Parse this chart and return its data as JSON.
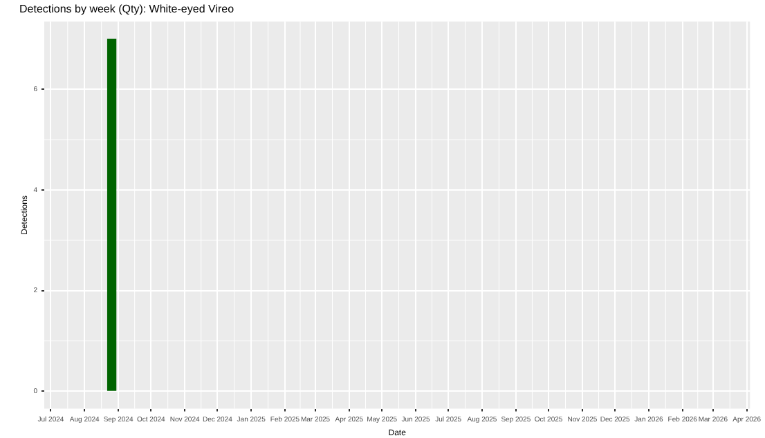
{
  "chart_data": {
    "type": "bar",
    "title": "Detections by week (Qty): White-eyed Vireo",
    "xlabel": "Date",
    "ylabel": "Detections",
    "x": [
      "2024-08-26"
    ],
    "values": [
      7
    ],
    "color": "#006400",
    "xlim": [
      "2024-06-25",
      "2026-04-04"
    ],
    "xticks": [
      {
        "value": "2024-07-01",
        "label": "Jul 2024"
      },
      {
        "value": "2024-08-01",
        "label": "Aug 2024"
      },
      {
        "value": "2024-09-01",
        "label": "Sep 2024"
      },
      {
        "value": "2024-10-01",
        "label": "Oct 2024"
      },
      {
        "value": "2024-11-01",
        "label": "Nov 2024"
      },
      {
        "value": "2024-12-01",
        "label": "Dec 2024"
      },
      {
        "value": "2025-01-01",
        "label": "Jan 2025"
      },
      {
        "value": "2025-02-01",
        "label": "Feb 2025"
      },
      {
        "value": "2025-03-01",
        "label": "Mar 2025"
      },
      {
        "value": "2025-04-01",
        "label": "Apr 2025"
      },
      {
        "value": "2025-05-01",
        "label": "May 2025"
      },
      {
        "value": "2025-06-01",
        "label": "Jun 2025"
      },
      {
        "value": "2025-07-01",
        "label": "Jul 2025"
      },
      {
        "value": "2025-08-01",
        "label": "Aug 2025"
      },
      {
        "value": "2025-09-01",
        "label": "Sep 2025"
      },
      {
        "value": "2025-10-01",
        "label": "Oct 2025"
      },
      {
        "value": "2025-11-01",
        "label": "Nov 2025"
      },
      {
        "value": "2025-12-01",
        "label": "Dec 2025"
      },
      {
        "value": "2026-01-01",
        "label": "Jan 2026"
      },
      {
        "value": "2026-02-01",
        "label": "Feb 2026"
      },
      {
        "value": "2026-03-01",
        "label": "Mar 2026"
      },
      {
        "value": "2026-04-01",
        "label": "Apr 2026"
      }
    ],
    "ylim": [
      -0.35,
      7.35
    ],
    "yticks": [
      0,
      2,
      4,
      6
    ],
    "grid": true
  }
}
